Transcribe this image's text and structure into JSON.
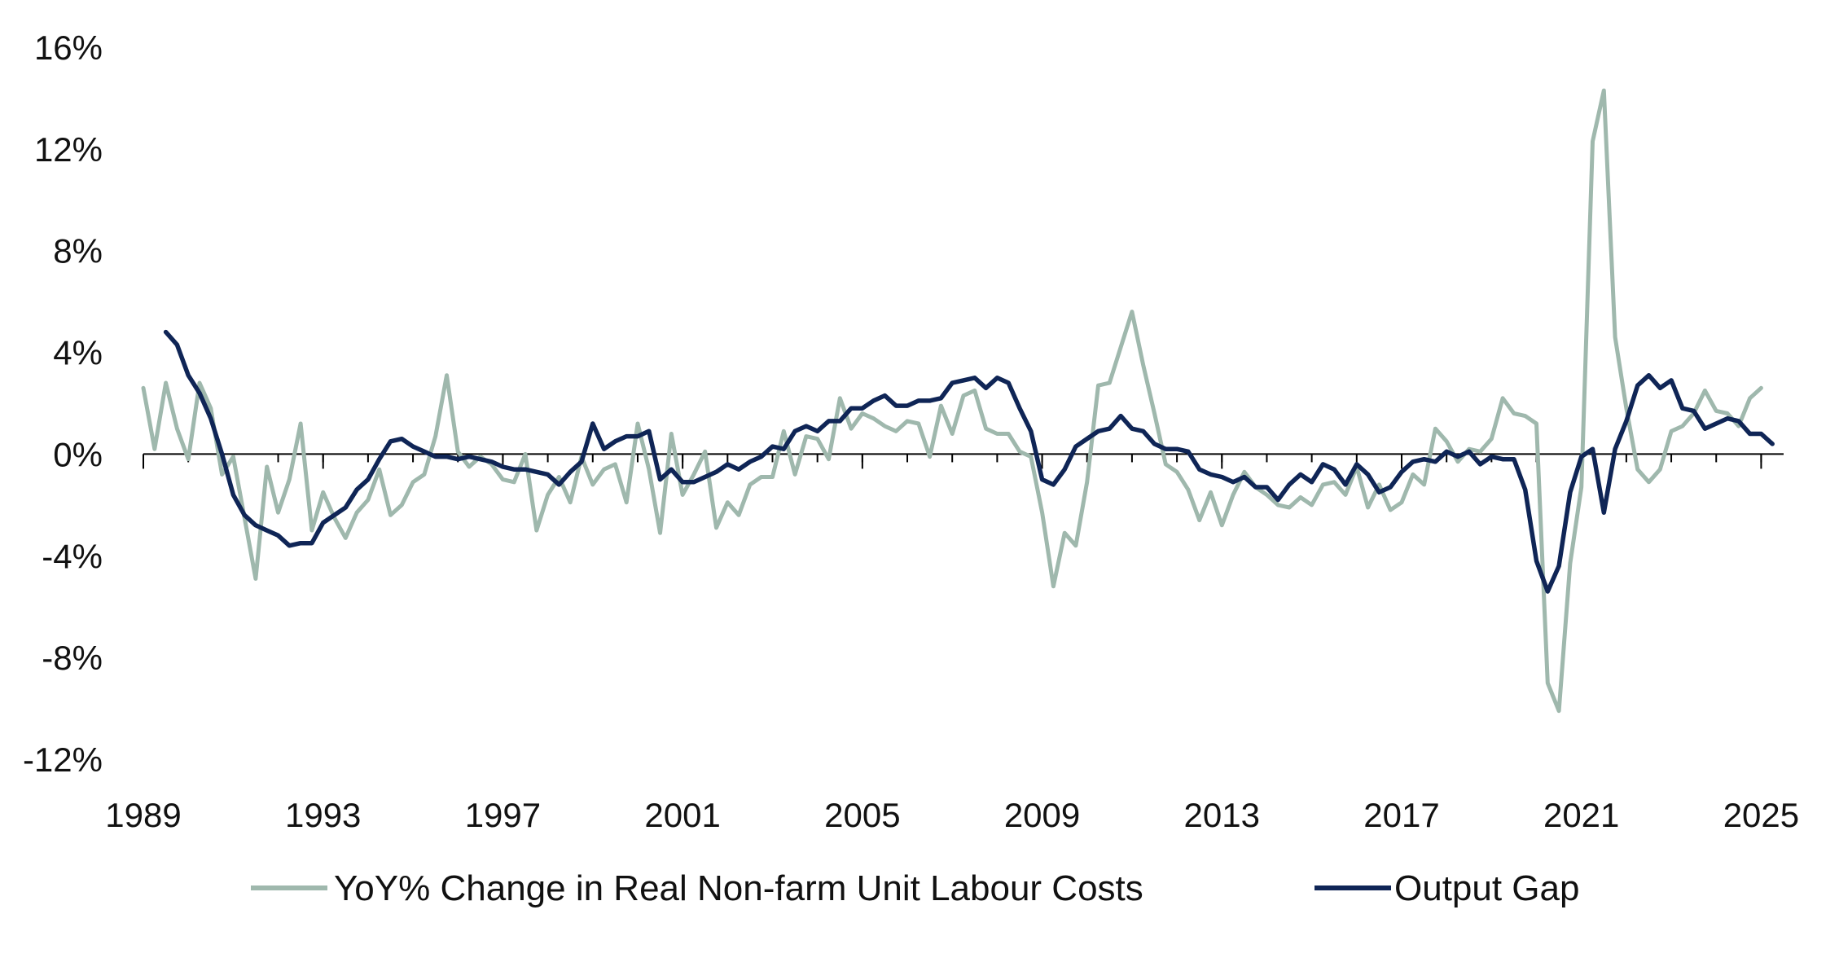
{
  "chart_data": {
    "type": "line",
    "title": "",
    "xlabel": "",
    "ylabel": "",
    "xlim": [
      1989.0,
      2025.5
    ],
    "ylim": [
      -12,
      16
    ],
    "grid": false,
    "legend_position": "bottom",
    "x_ticks": [
      {
        "value": 1989,
        "label": "1989"
      },
      {
        "value": 1993,
        "label": "1993"
      },
      {
        "value": 1997,
        "label": "1997"
      },
      {
        "value": 2001,
        "label": "2001"
      },
      {
        "value": 2005,
        "label": "2005"
      },
      {
        "value": 2009,
        "label": "2009"
      },
      {
        "value": 2013,
        "label": "2013"
      },
      {
        "value": 2017,
        "label": "2017"
      },
      {
        "value": 2021,
        "label": "2021"
      },
      {
        "value": 2025,
        "label": "2025"
      }
    ],
    "y_ticks": [
      {
        "value": 16,
        "label": "16%"
      },
      {
        "value": 12,
        "label": "12%"
      },
      {
        "value": 8,
        "label": "8%"
      },
      {
        "value": 4,
        "label": "4%"
      },
      {
        "value": 0,
        "label": "0%"
      },
      {
        "value": -4,
        "label": "-4%"
      },
      {
        "value": -8,
        "label": "-8%"
      },
      {
        "value": -12,
        "label": "-12%"
      }
    ],
    "series": [
      {
        "name": "YoY% Change in Real Non-farm Unit Labour Costs",
        "color": "#9fb8ad",
        "points": [
          [
            1989.0,
            2.6
          ],
          [
            1989.25,
            0.2
          ],
          [
            1989.5,
            2.8
          ],
          [
            1989.75,
            1.0
          ],
          [
            1990.0,
            -0.2
          ],
          [
            1990.25,
            2.8
          ],
          [
            1990.5,
            1.8
          ],
          [
            1990.75,
            -0.8
          ],
          [
            1991.0,
            -0.1
          ],
          [
            1991.25,
            -2.5
          ],
          [
            1991.5,
            -4.9
          ],
          [
            1991.75,
            -0.5
          ],
          [
            1992.0,
            -2.3
          ],
          [
            1992.25,
            -1.0
          ],
          [
            1992.5,
            1.2
          ],
          [
            1992.75,
            -3.0
          ],
          [
            1993.0,
            -1.5
          ],
          [
            1993.25,
            -2.5
          ],
          [
            1993.5,
            -3.3
          ],
          [
            1993.75,
            -2.3
          ],
          [
            1994.0,
            -1.8
          ],
          [
            1994.25,
            -0.6
          ],
          [
            1994.5,
            -2.4
          ],
          [
            1994.75,
            -2.0
          ],
          [
            1995.0,
            -1.1
          ],
          [
            1995.25,
            -0.8
          ],
          [
            1995.5,
            0.7
          ],
          [
            1995.75,
            3.1
          ],
          [
            1996.0,
            0.1
          ],
          [
            1996.25,
            -0.5
          ],
          [
            1996.5,
            -0.1
          ],
          [
            1996.75,
            -0.4
          ],
          [
            1997.0,
            -1.0
          ],
          [
            1997.25,
            -1.1
          ],
          [
            1997.5,
            0.0
          ],
          [
            1997.75,
            -3.0
          ],
          [
            1998.0,
            -1.6
          ],
          [
            1998.25,
            -0.9
          ],
          [
            1998.5,
            -1.9
          ],
          [
            1998.75,
            -0.1
          ],
          [
            1999.0,
            -1.2
          ],
          [
            1999.25,
            -0.6
          ],
          [
            1999.5,
            -0.4
          ],
          [
            1999.75,
            -1.9
          ],
          [
            2000.0,
            1.2
          ],
          [
            2000.25,
            -0.6
          ],
          [
            2000.5,
            -3.1
          ],
          [
            2000.75,
            0.8
          ],
          [
            2001.0,
            -1.6
          ],
          [
            2001.25,
            -0.8
          ],
          [
            2001.5,
            0.1
          ],
          [
            2001.75,
            -2.9
          ],
          [
            2002.0,
            -1.9
          ],
          [
            2002.25,
            -2.4
          ],
          [
            2002.5,
            -1.2
          ],
          [
            2002.75,
            -0.9
          ],
          [
            2003.0,
            -0.9
          ],
          [
            2003.25,
            0.9
          ],
          [
            2003.5,
            -0.8
          ],
          [
            2003.75,
            0.7
          ],
          [
            2004.0,
            0.6
          ],
          [
            2004.25,
            -0.2
          ],
          [
            2004.5,
            2.2
          ],
          [
            2004.75,
            1.0
          ],
          [
            2005.0,
            1.6
          ],
          [
            2005.25,
            1.4
          ],
          [
            2005.5,
            1.1
          ],
          [
            2005.75,
            0.9
          ],
          [
            2006.0,
            1.3
          ],
          [
            2006.25,
            1.2
          ],
          [
            2006.5,
            -0.1
          ],
          [
            2006.75,
            1.9
          ],
          [
            2007.0,
            0.8
          ],
          [
            2007.25,
            2.3
          ],
          [
            2007.5,
            2.5
          ],
          [
            2007.75,
            1.0
          ],
          [
            2008.0,
            0.8
          ],
          [
            2008.25,
            0.8
          ],
          [
            2008.5,
            0.1
          ],
          [
            2008.75,
            -0.1
          ],
          [
            2009.0,
            -2.3
          ],
          [
            2009.25,
            -5.2
          ],
          [
            2009.5,
            -3.1
          ],
          [
            2009.75,
            -3.6
          ],
          [
            2010.0,
            -1.1
          ],
          [
            2010.25,
            2.7
          ],
          [
            2010.5,
            2.8
          ],
          [
            2010.75,
            4.2
          ],
          [
            2011.0,
            5.6
          ],
          [
            2011.25,
            3.5
          ],
          [
            2011.5,
            1.6
          ],
          [
            2011.75,
            -0.4
          ],
          [
            2012.0,
            -0.7
          ],
          [
            2012.25,
            -1.4
          ],
          [
            2012.5,
            -2.6
          ],
          [
            2012.75,
            -1.5
          ],
          [
            2013.0,
            -2.8
          ],
          [
            2013.25,
            -1.6
          ],
          [
            2013.5,
            -0.7
          ],
          [
            2013.75,
            -1.3
          ],
          [
            2014.0,
            -1.6
          ],
          [
            2014.25,
            -2.0
          ],
          [
            2014.5,
            -2.1
          ],
          [
            2014.75,
            -1.7
          ],
          [
            2015.0,
            -2.0
          ],
          [
            2015.25,
            -1.2
          ],
          [
            2015.5,
            -1.1
          ],
          [
            2015.75,
            -1.6
          ],
          [
            2016.0,
            -0.5
          ],
          [
            2016.25,
            -2.1
          ],
          [
            2016.5,
            -1.2
          ],
          [
            2016.75,
            -2.2
          ],
          [
            2017.0,
            -1.9
          ],
          [
            2017.25,
            -0.8
          ],
          [
            2017.5,
            -1.2
          ],
          [
            2017.75,
            1.0
          ],
          [
            2018.0,
            0.5
          ],
          [
            2018.25,
            -0.3
          ],
          [
            2018.5,
            0.2
          ],
          [
            2018.75,
            0.1
          ],
          [
            2019.0,
            0.6
          ],
          [
            2019.25,
            2.2
          ],
          [
            2019.5,
            1.6
          ],
          [
            2019.75,
            1.5
          ],
          [
            2020.0,
            1.2
          ],
          [
            2020.25,
            -9.0
          ],
          [
            2020.5,
            -10.1
          ],
          [
            2020.75,
            -4.3
          ],
          [
            2021.0,
            -1.3
          ],
          [
            2021.25,
            12.3
          ],
          [
            2021.5,
            14.3
          ],
          [
            2021.75,
            4.6
          ],
          [
            2022.0,
            1.8
          ],
          [
            2022.25,
            -0.6
          ],
          [
            2022.5,
            -1.1
          ],
          [
            2022.75,
            -0.6
          ],
          [
            2023.0,
            0.9
          ],
          [
            2023.25,
            1.1
          ],
          [
            2023.5,
            1.6
          ],
          [
            2023.75,
            2.5
          ],
          [
            2024.0,
            1.7
          ],
          [
            2024.25,
            1.6
          ],
          [
            2024.5,
            1.1
          ],
          [
            2024.75,
            2.2
          ],
          [
            2025.0,
            2.6
          ]
        ]
      },
      {
        "name": "Output Gap",
        "color": "#0f2556",
        "points": [
          [
            1989.5,
            4.8
          ],
          [
            1989.75,
            4.3
          ],
          [
            1990.0,
            3.1
          ],
          [
            1990.25,
            2.4
          ],
          [
            1990.5,
            1.4
          ],
          [
            1990.75,
            0.0
          ],
          [
            1991.0,
            -1.6
          ],
          [
            1991.25,
            -2.4
          ],
          [
            1991.5,
            -2.8
          ],
          [
            1991.75,
            -3.0
          ],
          [
            1992.0,
            -3.2
          ],
          [
            1992.25,
            -3.6
          ],
          [
            1992.5,
            -3.5
          ],
          [
            1992.75,
            -3.5
          ],
          [
            1993.0,
            -2.7
          ],
          [
            1993.25,
            -2.4
          ],
          [
            1993.5,
            -2.1
          ],
          [
            1993.75,
            -1.4
          ],
          [
            1994.0,
            -1.0
          ],
          [
            1994.25,
            -0.2
          ],
          [
            1994.5,
            0.5
          ],
          [
            1994.75,
            0.6
          ],
          [
            1995.0,
            0.3
          ],
          [
            1995.25,
            0.1
          ],
          [
            1995.5,
            -0.1
          ],
          [
            1995.75,
            -0.1
          ],
          [
            1996.0,
            -0.2
          ],
          [
            1996.25,
            -0.1
          ],
          [
            1996.5,
            -0.2
          ],
          [
            1996.75,
            -0.3
          ],
          [
            1997.0,
            -0.5
          ],
          [
            1997.25,
            -0.6
          ],
          [
            1997.5,
            -0.6
          ],
          [
            1997.75,
            -0.7
          ],
          [
            1998.0,
            -0.8
          ],
          [
            1998.25,
            -1.2
          ],
          [
            1998.5,
            -0.7
          ],
          [
            1998.75,
            -0.3
          ],
          [
            1999.0,
            1.2
          ],
          [
            1999.25,
            0.2
          ],
          [
            1999.5,
            0.5
          ],
          [
            1999.75,
            0.7
          ],
          [
            2000.0,
            0.7
          ],
          [
            2000.25,
            0.9
          ],
          [
            2000.5,
            -1.0
          ],
          [
            2000.75,
            -0.6
          ],
          [
            2001.0,
            -1.1
          ],
          [
            2001.25,
            -1.1
          ],
          [
            2001.5,
            -0.9
          ],
          [
            2001.75,
            -0.7
          ],
          [
            2002.0,
            -0.4
          ],
          [
            2002.25,
            -0.6
          ],
          [
            2002.5,
            -0.3
          ],
          [
            2002.75,
            -0.1
          ],
          [
            2003.0,
            0.3
          ],
          [
            2003.25,
            0.2
          ],
          [
            2003.5,
            0.9
          ],
          [
            2003.75,
            1.1
          ],
          [
            2004.0,
            0.9
          ],
          [
            2004.25,
            1.3
          ],
          [
            2004.5,
            1.3
          ],
          [
            2004.75,
            1.8
          ],
          [
            2005.0,
            1.8
          ],
          [
            2005.25,
            2.1
          ],
          [
            2005.5,
            2.3
          ],
          [
            2005.75,
            1.9
          ],
          [
            2006.0,
            1.9
          ],
          [
            2006.25,
            2.1
          ],
          [
            2006.5,
            2.1
          ],
          [
            2006.75,
            2.2
          ],
          [
            2007.0,
            2.8
          ],
          [
            2007.25,
            2.9
          ],
          [
            2007.5,
            3.0
          ],
          [
            2007.75,
            2.6
          ],
          [
            2008.0,
            3.0
          ],
          [
            2008.25,
            2.8
          ],
          [
            2008.5,
            1.8
          ],
          [
            2008.75,
            0.9
          ],
          [
            2009.0,
            -1.0
          ],
          [
            2009.25,
            -1.2
          ],
          [
            2009.5,
            -0.6
          ],
          [
            2009.75,
            0.3
          ],
          [
            2010.0,
            0.6
          ],
          [
            2010.25,
            0.9
          ],
          [
            2010.5,
            1.0
          ],
          [
            2010.75,
            1.5
          ],
          [
            2011.0,
            1.0
          ],
          [
            2011.25,
            0.9
          ],
          [
            2011.5,
            0.4
          ],
          [
            2011.75,
            0.2
          ],
          [
            2012.0,
            0.2
          ],
          [
            2012.25,
            0.1
          ],
          [
            2012.5,
            -0.6
          ],
          [
            2012.75,
            -0.8
          ],
          [
            2013.0,
            -0.9
          ],
          [
            2013.25,
            -1.1
          ],
          [
            2013.5,
            -0.9
          ],
          [
            2013.75,
            -1.3
          ],
          [
            2014.0,
            -1.3
          ],
          [
            2014.25,
            -1.8
          ],
          [
            2014.5,
            -1.2
          ],
          [
            2014.75,
            -0.8
          ],
          [
            2015.0,
            -1.1
          ],
          [
            2015.25,
            -0.4
          ],
          [
            2015.5,
            -0.6
          ],
          [
            2015.75,
            -1.2
          ],
          [
            2016.0,
            -0.4
          ],
          [
            2016.25,
            -0.8
          ],
          [
            2016.5,
            -1.5
          ],
          [
            2016.75,
            -1.3
          ],
          [
            2017.0,
            -0.7
          ],
          [
            2017.25,
            -0.3
          ],
          [
            2017.5,
            -0.2
          ],
          [
            2017.75,
            -0.3
          ],
          [
            2018.0,
            0.1
          ],
          [
            2018.25,
            -0.1
          ],
          [
            2018.5,
            0.1
          ],
          [
            2018.75,
            -0.4
          ],
          [
            2019.0,
            -0.1
          ],
          [
            2019.25,
            -0.2
          ],
          [
            2019.5,
            -0.2
          ],
          [
            2019.75,
            -1.4
          ],
          [
            2020.0,
            -4.2
          ],
          [
            2020.25,
            -5.4
          ],
          [
            2020.5,
            -4.4
          ],
          [
            2020.75,
            -1.5
          ],
          [
            2021.0,
            -0.1
          ],
          [
            2021.25,
            0.2
          ],
          [
            2021.5,
            -2.3
          ],
          [
            2021.75,
            0.2
          ],
          [
            2022.0,
            1.3
          ],
          [
            2022.25,
            2.7
          ],
          [
            2022.5,
            3.1
          ],
          [
            2022.75,
            2.6
          ],
          [
            2023.0,
            2.9
          ],
          [
            2023.25,
            1.8
          ],
          [
            2023.5,
            1.7
          ],
          [
            2023.75,
            1.0
          ],
          [
            2024.0,
            1.2
          ],
          [
            2024.25,
            1.4
          ],
          [
            2024.5,
            1.3
          ],
          [
            2024.75,
            0.8
          ],
          [
            2025.0,
            0.8
          ],
          [
            2025.25,
            0.4
          ]
        ]
      }
    ]
  }
}
